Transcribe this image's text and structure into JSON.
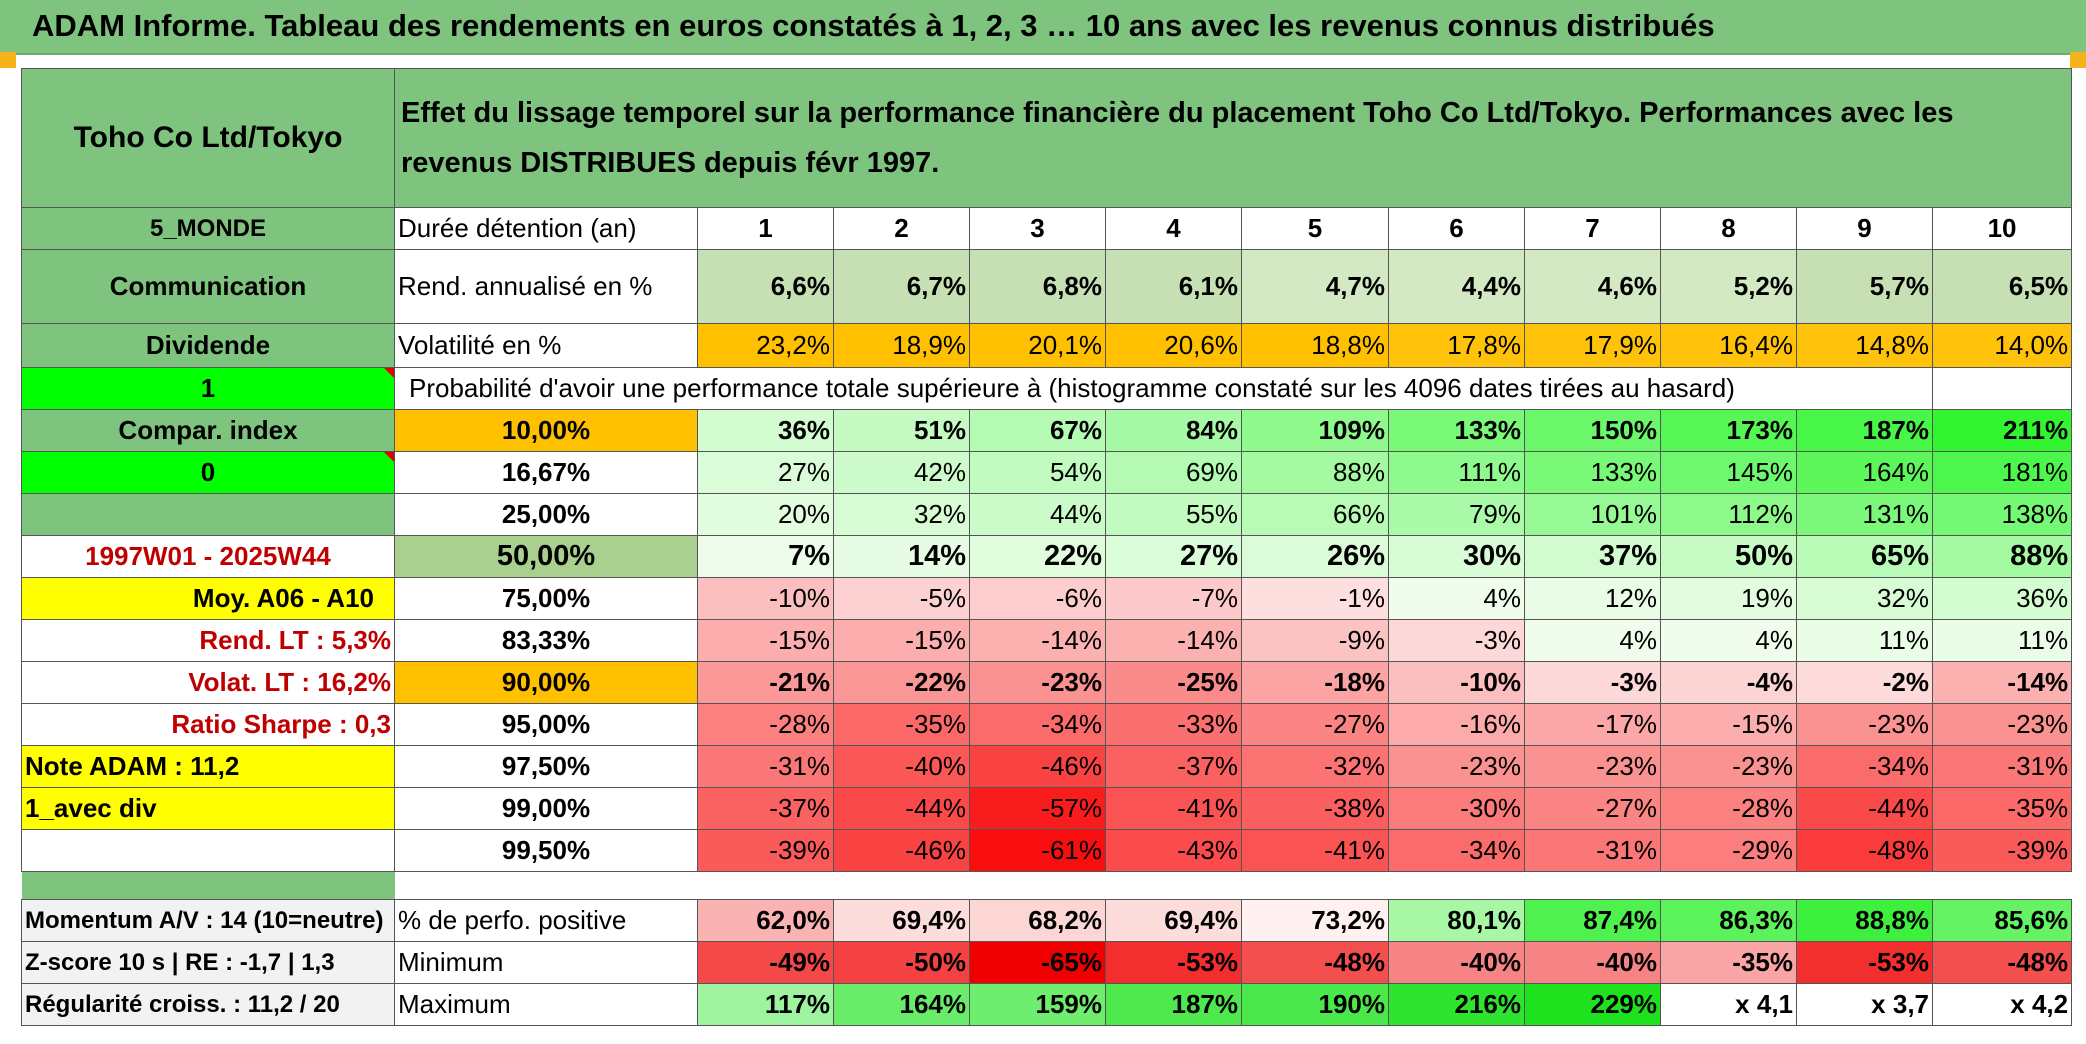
{
  "title": "ADAM Informe. Tableau des rendements en euros constatés à 1, 2, 3 … 10 ans avec les revenus connus distribués",
  "header": {
    "company": "Toho Co Ltd/Tokyo",
    "description": "Effet du lissage temporel sur la performance financière du placement Toho Co Ltd/Tokyo. Performances avec les revenus DISTRIBUES depuis févr 1997."
  },
  "left": {
    "region": "5_MONDE",
    "sector": "Communication",
    "income": "Dividende",
    "flag1": "1",
    "compar_label": "Compar. index",
    "flag0": "0",
    "period": "1997W01 - 2025W44",
    "moy": "Moy. A06 - A10",
    "rend_lt": "Rend. LT :   5,3%",
    "volat_lt": "Volat. LT :   16,2%",
    "sharpe": "Ratio Sharpe :   0,3",
    "note": "Note ADAM : 11,2",
    "avec_div": "1_avec div",
    "momentum": "Momentum A/V : 14 (10=neutre)",
    "zscore": "Z-score 10 s | RE : -1,7 | 1,3",
    "regularite": "Régularité croiss. : 11,2 / 20"
  },
  "labels": {
    "duree": "Durée détention (an)",
    "rend": "Rend. annualisé en %",
    "vol": "Volatilité en %",
    "proba": "Probabilité d'avoir une performance totale supérieure à (histogramme constaté sur les 4096 dates tirées au hasard)",
    "pos": "% de perfo. positive",
    "min": "Minimum",
    "max": "Maximum"
  },
  "years": [
    "1",
    "2",
    "3",
    "4",
    "5",
    "6",
    "7",
    "8",
    "9",
    "10"
  ],
  "rend": [
    "6,6%",
    "6,7%",
    "6,8%",
    "6,1%",
    "4,7%",
    "4,4%",
    "4,6%",
    "5,2%",
    "5,7%",
    "6,5%"
  ],
  "vol": [
    "23,2%",
    "18,9%",
    "20,1%",
    "20,6%",
    "18,8%",
    "17,8%",
    "17,9%",
    "16,4%",
    "14,8%",
    "14,0%"
  ],
  "quantiles": [
    {
      "p": "10,00%",
      "v": [
        "36%",
        "51%",
        "67%",
        "84%",
        "109%",
        "133%",
        "150%",
        "173%",
        "187%",
        "211%"
      ]
    },
    {
      "p": "16,67%",
      "v": [
        "27%",
        "42%",
        "54%",
        "69%",
        "88%",
        "111%",
        "133%",
        "145%",
        "164%",
        "181%"
      ]
    },
    {
      "p": "25,00%",
      "v": [
        "20%",
        "32%",
        "44%",
        "55%",
        "66%",
        "79%",
        "101%",
        "112%",
        "131%",
        "138%"
      ]
    },
    {
      "p": "50,00%",
      "v": [
        "7%",
        "14%",
        "22%",
        "27%",
        "26%",
        "30%",
        "37%",
        "50%",
        "65%",
        "88%"
      ]
    },
    {
      "p": "75,00%",
      "v": [
        "-10%",
        "-5%",
        "-6%",
        "-7%",
        "-1%",
        "4%",
        "12%",
        "19%",
        "32%",
        "36%"
      ]
    },
    {
      "p": "83,33%",
      "v": [
        "-15%",
        "-15%",
        "-14%",
        "-14%",
        "-9%",
        "-3%",
        "4%",
        "4%",
        "11%",
        "11%"
      ]
    },
    {
      "p": "90,00%",
      "v": [
        "-21%",
        "-22%",
        "-23%",
        "-25%",
        "-18%",
        "-10%",
        "-3%",
        "-4%",
        "-2%",
        "-14%"
      ]
    },
    {
      "p": "95,00%",
      "v": [
        "-28%",
        "-35%",
        "-34%",
        "-33%",
        "-27%",
        "-16%",
        "-17%",
        "-15%",
        "-23%",
        "-23%"
      ]
    },
    {
      "p": "97,50%",
      "v": [
        "-31%",
        "-40%",
        "-46%",
        "-37%",
        "-32%",
        "-23%",
        "-23%",
        "-23%",
        "-34%",
        "-31%"
      ]
    },
    {
      "p": "99,00%",
      "v": [
        "-37%",
        "-44%",
        "-57%",
        "-41%",
        "-38%",
        "-30%",
        "-27%",
        "-28%",
        "-44%",
        "-35%"
      ]
    },
    {
      "p": "99,50%",
      "v": [
        "-39%",
        "-46%",
        "-61%",
        "-43%",
        "-41%",
        "-34%",
        "-31%",
        "-29%",
        "-48%",
        "-39%"
      ]
    }
  ],
  "pos": [
    "62,0%",
    "69,4%",
    "68,2%",
    "69,4%",
    "73,2%",
    "80,1%",
    "87,4%",
    "86,3%",
    "88,8%",
    "85,6%"
  ],
  "min": [
    "-49%",
    "-50%",
    "-65%",
    "-53%",
    "-48%",
    "-40%",
    "-40%",
    "-35%",
    "-53%",
    "-48%"
  ],
  "max": [
    "117%",
    "164%",
    "159%",
    "187%",
    "190%",
    "216%",
    "229%",
    "x 4,1",
    "x 3,7",
    "x 4,2"
  ],
  "colors": {
    "header_green": "#7ec47e",
    "orange": "#ffc000",
    "yellow": "#ffff00",
    "bright_green": "#00ff00",
    "label_red": "#c00000"
  }
}
